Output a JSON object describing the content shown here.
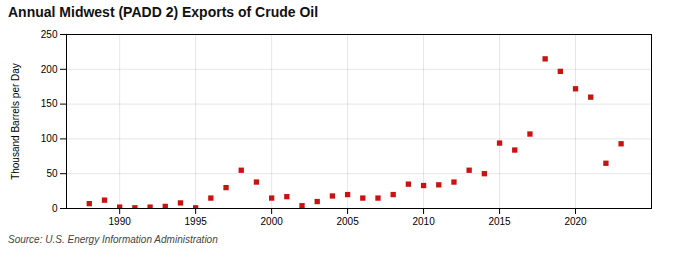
{
  "chart_data": {
    "type": "scatter",
    "title": "Annual Midwest (PADD 2) Exports of Crude Oil",
    "ylabel": "Thousand Barrels per Day",
    "annotation": "Source: U.S. Energy Information Administration",
    "x": [
      1988,
      1989,
      1990,
      1991,
      1992,
      1993,
      1994,
      1995,
      1996,
      1997,
      1998,
      1999,
      2000,
      2001,
      2002,
      2003,
      2004,
      2005,
      2006,
      2007,
      2008,
      2009,
      2010,
      2011,
      2012,
      2013,
      2014,
      2015,
      2016,
      2017,
      2018,
      2019,
      2020,
      2021,
      2022,
      2023
    ],
    "values": [
      7,
      12,
      2,
      1,
      2,
      3,
      8,
      1,
      15,
      30,
      55,
      38,
      15,
      17,
      4,
      10,
      18,
      20,
      15,
      15,
      20,
      35,
      33,
      34,
      38,
      55,
      50,
      94,
      84,
      107,
      215,
      197,
      172,
      160,
      65,
      93
    ],
    "color": "#cc1111",
    "marker": "square",
    "xlim": [
      1986.5,
      2025
    ],
    "xticks": [
      1990,
      1995,
      2000,
      2005,
      2010,
      2015,
      2020
    ],
    "ylim": [
      0,
      250
    ],
    "yticks": [
      0,
      50,
      100,
      150,
      200,
      250
    ],
    "grid": true
  }
}
